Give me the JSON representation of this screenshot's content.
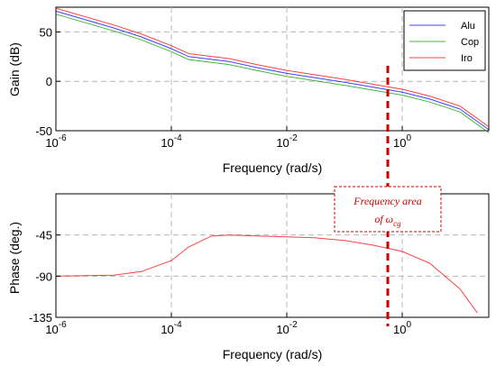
{
  "chart_data": [
    {
      "type": "line",
      "title": "",
      "xlabel": "Frequency (rad/s)",
      "ylabel": "Gain (dB)",
      "xscale": "log",
      "xlim": [
        1e-06,
        31.6
      ],
      "ylim": [
        -50,
        75
      ],
      "xticks": [
        {
          "value": 1e-06,
          "base": "10",
          "exp": "-6"
        },
        {
          "value": 0.0001,
          "base": "10",
          "exp": "-4"
        },
        {
          "value": 0.01,
          "base": "10",
          "exp": "-2"
        },
        {
          "value": 1,
          "base": "10",
          "exp": "0"
        }
      ],
      "yticks": [
        {
          "value": 50,
          "label": "50"
        },
        {
          "value": 0,
          "label": "0"
        },
        {
          "value": -50,
          "label": "-50"
        }
      ],
      "grid": true,
      "legend": "top-right",
      "series": [
        {
          "name": "Alu",
          "color": "#0000ff",
          "x": [
            1e-06,
            1e-05,
            3e-05,
            0.0001,
            0.0002,
            0.001,
            0.003,
            0.01,
            0.1,
            1,
            3,
            10,
            31.6
          ],
          "y": [
            71,
            54,
            45,
            33,
            25,
            20,
            14,
            8,
            -1,
            -11,
            -18,
            -28,
            -49
          ]
        },
        {
          "name": "Cop",
          "color": "#00a000",
          "x": [
            1e-06,
            1e-05,
            3e-05,
            0.0001,
            0.0002,
            0.001,
            0.003,
            0.01,
            0.1,
            1,
            3,
            10,
            31.6
          ],
          "y": [
            68,
            51,
            42,
            30,
            22,
            17,
            11,
            5,
            -4,
            -14,
            -21,
            -31,
            -52
          ]
        },
        {
          "name": "Iro",
          "color": "#ff0000",
          "x": [
            1e-06,
            1e-05,
            3e-05,
            0.0001,
            0.0002,
            0.001,
            0.003,
            0.01,
            0.1,
            1,
            3,
            10,
            31.6
          ],
          "y": [
            74,
            57,
            48,
            36,
            28,
            23,
            17,
            11,
            2,
            -8,
            -15,
            -25,
            -46
          ]
        }
      ]
    },
    {
      "type": "line",
      "title": "",
      "xlabel": "Frequency (rad/s)",
      "ylabel": "Phase (deg.)",
      "xscale": "log",
      "xlim": [
        1e-06,
        31.6
      ],
      "ylim": [
        -135,
        0
      ],
      "xticks": [
        {
          "value": 1e-06,
          "base": "10",
          "exp": "-6"
        },
        {
          "value": 0.0001,
          "base": "10",
          "exp": "-4"
        },
        {
          "value": 0.01,
          "base": "10",
          "exp": "-2"
        },
        {
          "value": 1,
          "base": "10",
          "exp": "0"
        }
      ],
      "yticks": [
        {
          "value": -45,
          "label": "-45"
        },
        {
          "value": -90,
          "label": "-90"
        },
        {
          "value": -135,
          "label": "-135"
        }
      ],
      "grid": true,
      "series": [
        {
          "color": "#ff0000",
          "x": [
            1e-06,
            1e-05,
            3e-05,
            0.0001,
            0.0002,
            0.0005,
            0.001,
            0.003,
            0.01,
            0.03,
            0.1,
            0.3,
            1,
            3,
            10,
            20
          ],
          "y": [
            -90,
            -89,
            -85,
            -73,
            -58,
            -46,
            -45,
            -46,
            -47,
            -48,
            -51,
            -56,
            -63,
            -76,
            -104,
            -130
          ]
        }
      ]
    }
  ],
  "annotation": {
    "line1": "Frequency area",
    "line2_prefix": "of ",
    "symbol": "ω",
    "subscript": "cg",
    "x_value": 1,
    "color": "#cc0000"
  }
}
